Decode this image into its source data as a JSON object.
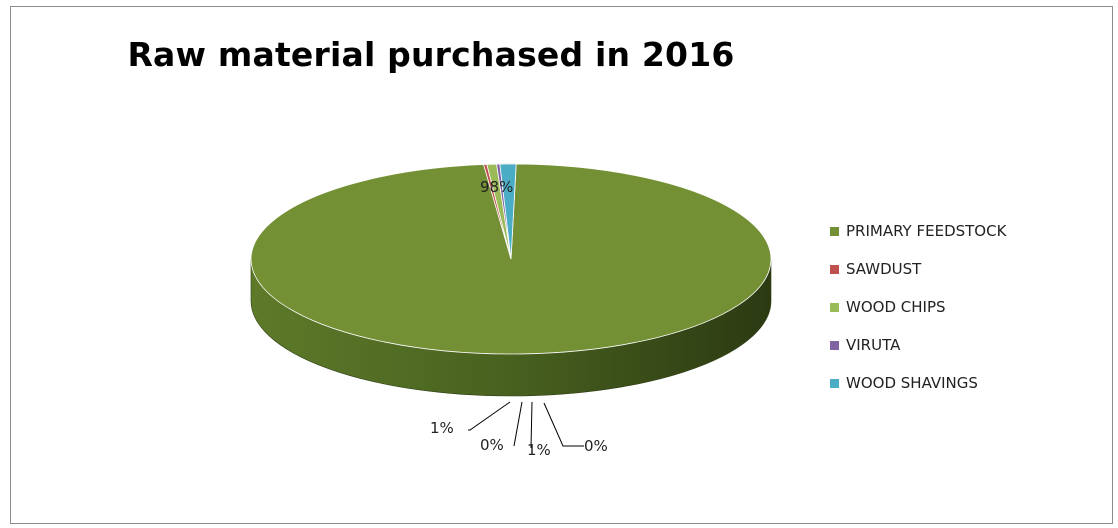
{
  "chart_data": {
    "type": "pie",
    "title": "Raw material purchased in 2016",
    "style": "3d-exploded-perspective",
    "legend_position": "right",
    "slices": [
      {
        "name": "PRIMARY FEEDSTOCK",
        "percent": 98,
        "label": "98%",
        "color": "#739035",
        "side_color": "#4a5e22",
        "label_mode": "inside"
      },
      {
        "name": "SAWDUST",
        "percent": 0.2,
        "label": "0%",
        "color": "#c0504d",
        "side_color": "#8a3432",
        "label_mode": "leader"
      },
      {
        "name": "WOOD CHIPS",
        "percent": 0.6,
        "label": "1%",
        "color": "#9bbb59",
        "side_color": "#6b8538",
        "label_mode": "leader"
      },
      {
        "name": "VIRUTA",
        "percent": 0.2,
        "label": "0%",
        "color": "#8064a2",
        "side_color": "#5a4673",
        "label_mode": "leader"
      },
      {
        "name": "WOOD SHAVINGS",
        "percent": 1.0,
        "label": "1%",
        "color": "#4bacc6",
        "side_color": "#2e7a8e",
        "label_mode": "leader"
      }
    ]
  }
}
